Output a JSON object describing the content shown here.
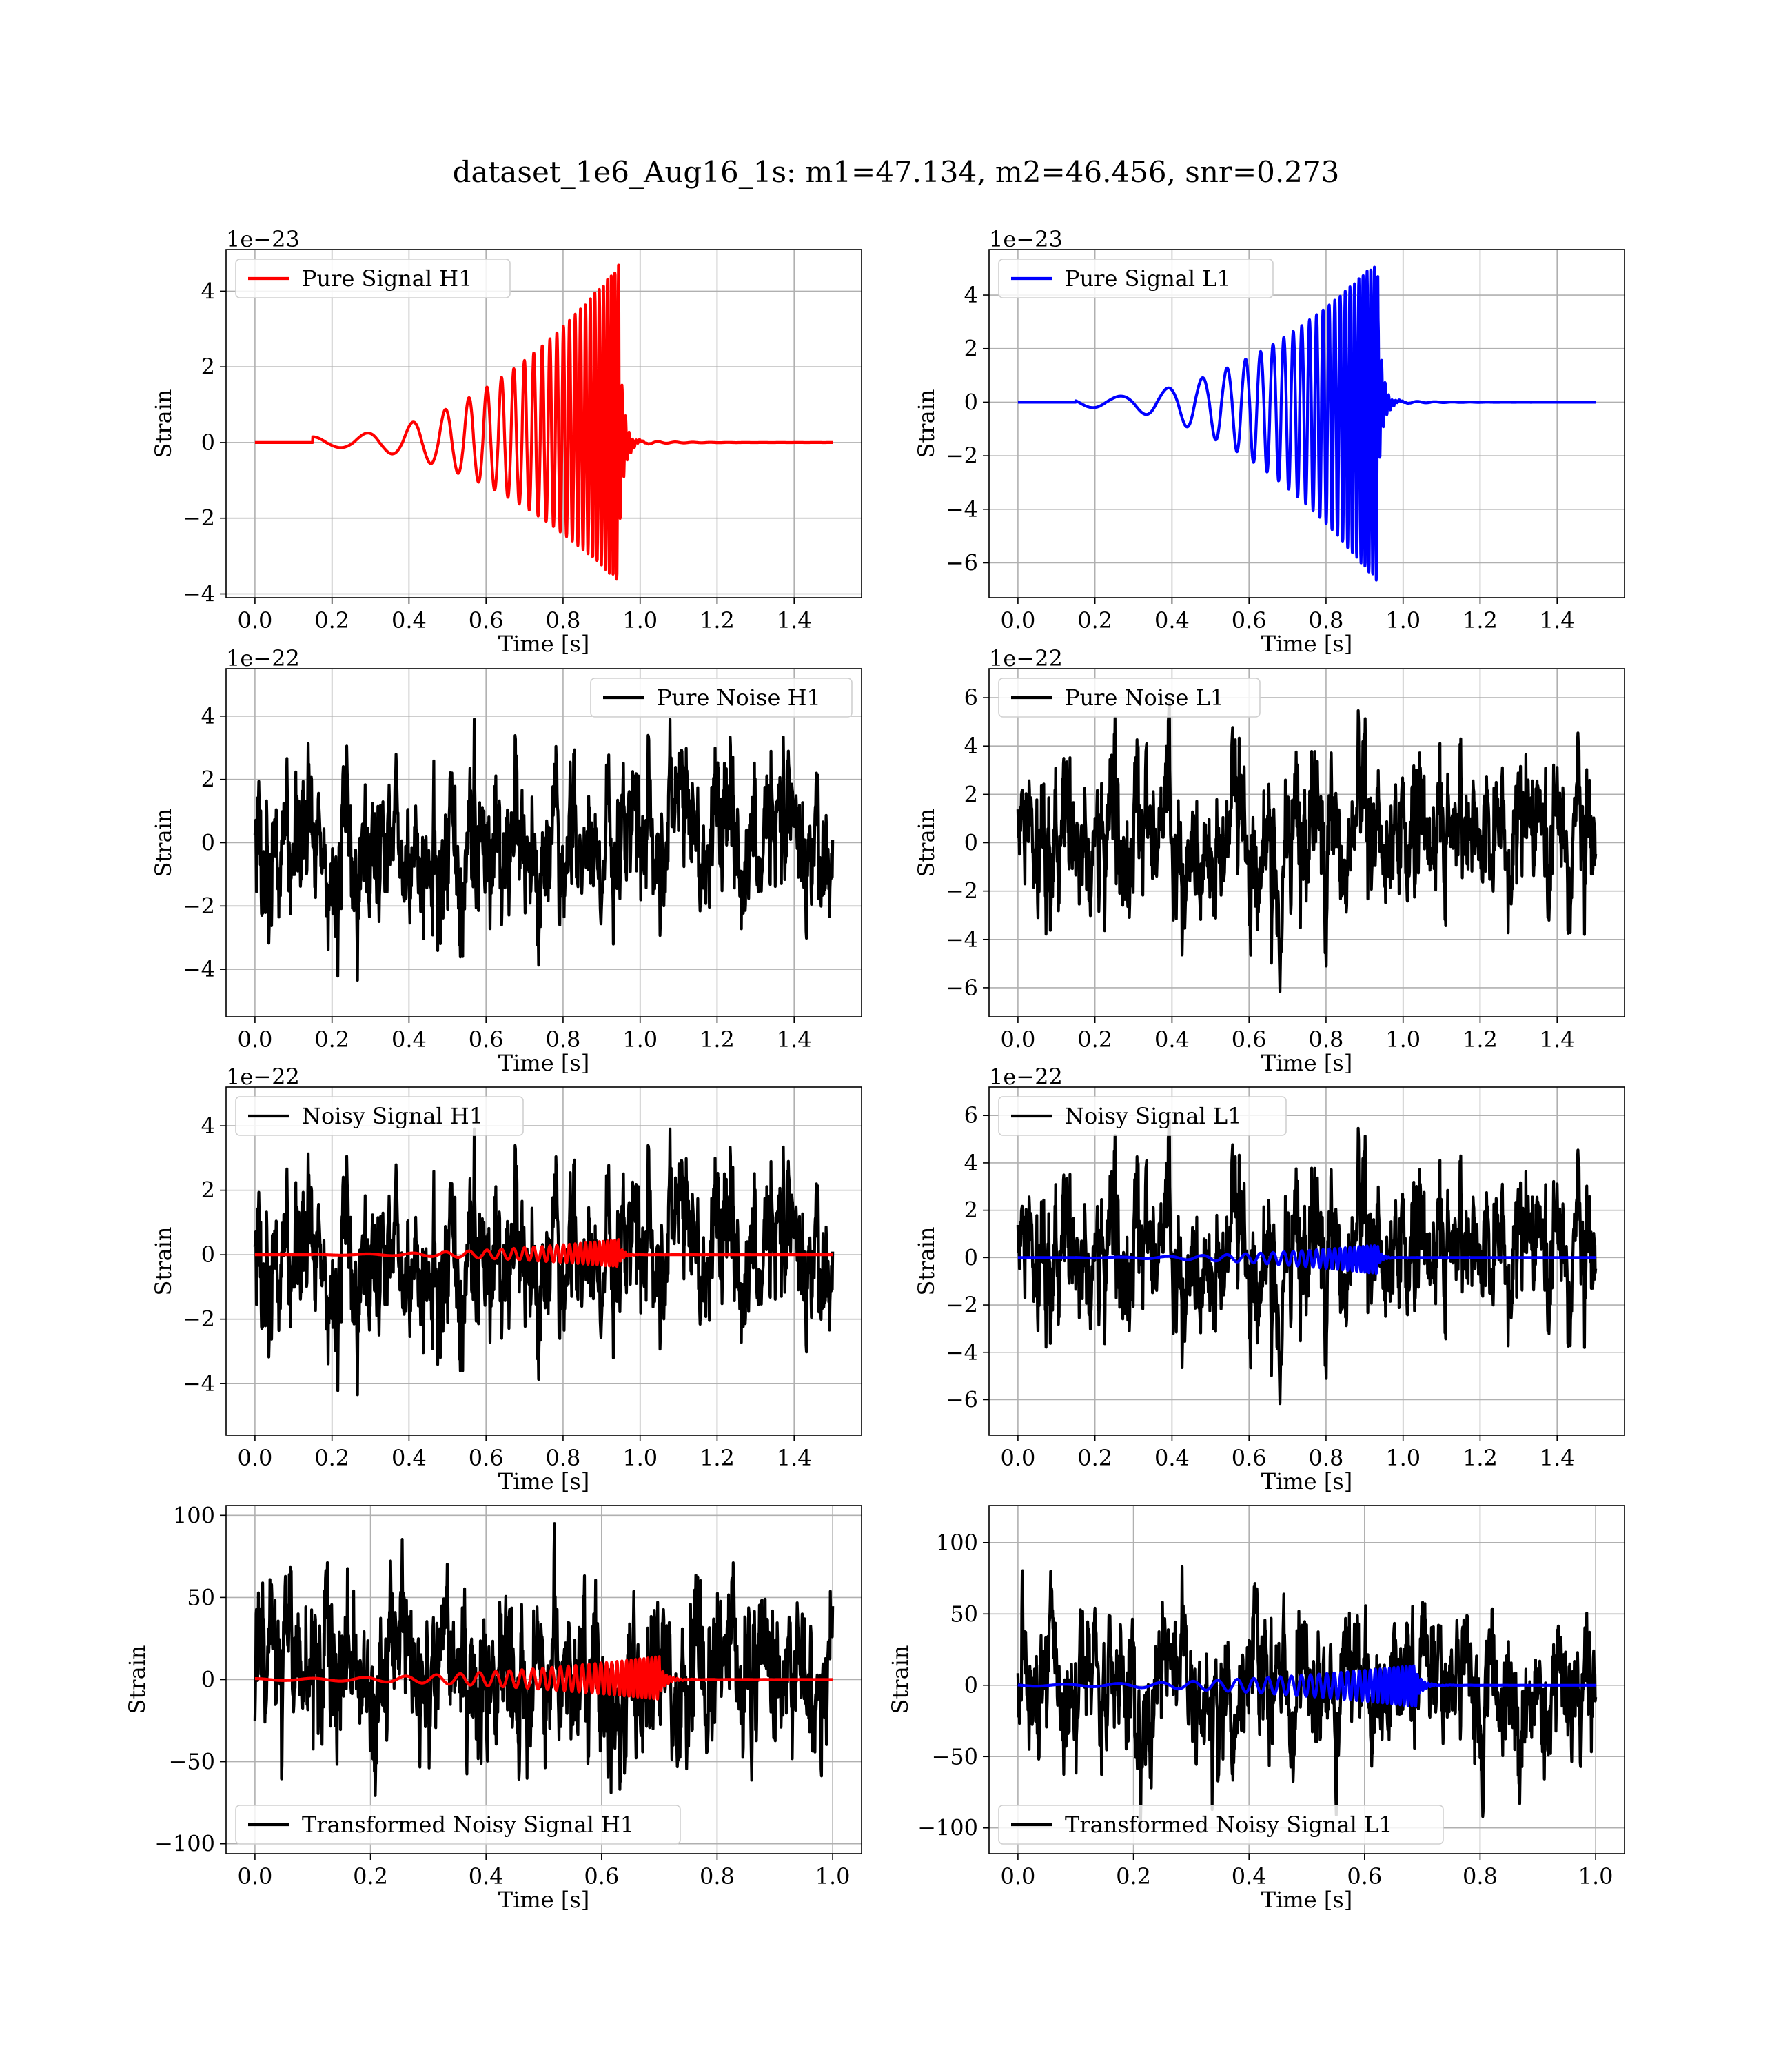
{
  "figure": {
    "title": "dataset_1e6_Aug16_1s: m1=47.134, m2=46.456, snr=0.273"
  },
  "chart_data": [
    {
      "type": "line",
      "id": "pure-signal-h1",
      "legend": "Pure Signal H1",
      "legend_loc": "upper-left",
      "xlabel": "Time [s]",
      "ylabel": "Strain",
      "offset_label": "1e−23",
      "xlim": [
        -0.075,
        1.575
      ],
      "ylim": [
        -4.1,
        5.1
      ],
      "xticks": [
        0.0,
        0.2,
        0.4,
        0.6,
        0.8,
        1.0,
        1.2,
        1.4
      ],
      "xtick_labels": [
        "0.0",
        "0.2",
        "0.4",
        "0.6",
        "0.8",
        "1.0",
        "1.2",
        "1.4"
      ],
      "yticks": [
        -4,
        -2,
        0,
        2,
        4
      ],
      "ytick_labels": [
        "−4",
        "−2",
        "0",
        "2",
        "4"
      ],
      "grid": true,
      "series": [
        {
          "name": "Pure Signal H1",
          "color": "#ff0000",
          "kind": "chirp",
          "t0": 0.0,
          "t1": 1.5,
          "merger": 0.945,
          "start": 0.15,
          "amp_peak": 4.7,
          "amp_min": -3.7,
          "amp_early": 0.15,
          "freq_early": 7,
          "freq_late": 110,
          "phase": 0
        }
      ]
    },
    {
      "type": "line",
      "id": "pure-signal-l1",
      "legend": "Pure Signal L1",
      "legend_loc": "upper-left",
      "xlabel": "Time [s]",
      "ylabel": "Strain",
      "offset_label": "1e−23",
      "xlim": [
        -0.075,
        1.575
      ],
      "ylim": [
        -7.3,
        5.7
      ],
      "xticks": [
        0.0,
        0.2,
        0.4,
        0.6,
        0.8,
        1.0,
        1.2,
        1.4
      ],
      "xtick_labels": [
        "0.0",
        "0.2",
        "0.4",
        "0.6",
        "0.8",
        "1.0",
        "1.2",
        "1.4"
      ],
      "yticks": [
        -6,
        -4,
        -2,
        0,
        2,
        4
      ],
      "ytick_labels": [
        "−6",
        "−4",
        "−2",
        "0",
        "2",
        "4"
      ],
      "grid": true,
      "series": [
        {
          "name": "Pure Signal L1",
          "color": "#0000ff",
          "kind": "chirp",
          "t0": 0.0,
          "t1": 1.5,
          "merger": 0.935,
          "start": 0.15,
          "amp_peak": 5.3,
          "amp_min": -6.8,
          "amp_early": 0.15,
          "freq_early": 7,
          "freq_late": 110,
          "phase": 1.2
        }
      ]
    },
    {
      "type": "line",
      "id": "pure-noise-h1",
      "legend": "Pure Noise H1",
      "legend_loc": "upper-right",
      "xlabel": "Time [s]",
      "ylabel": "Strain",
      "offset_label": "1e−22",
      "xlim": [
        -0.075,
        1.575
      ],
      "ylim": [
        -5.5,
        5.5
      ],
      "xticks": [
        0.0,
        0.2,
        0.4,
        0.6,
        0.8,
        1.0,
        1.2,
        1.4
      ],
      "xtick_labels": [
        "0.0",
        "0.2",
        "0.4",
        "0.6",
        "0.8",
        "1.0",
        "1.2",
        "1.4"
      ],
      "yticks": [
        -4,
        -2,
        0,
        2,
        4
      ],
      "ytick_labels": [
        "−4",
        "−2",
        "0",
        "2",
        "4"
      ],
      "grid": true,
      "series": [
        {
          "name": "Pure Noise H1",
          "color": "#000000",
          "kind": "noise",
          "t0": 0.0,
          "t1": 1.5,
          "sigma": 1.3,
          "max": 5.0,
          "min": -5.0,
          "seed": 11
        }
      ]
    },
    {
      "type": "line",
      "id": "pure-noise-l1",
      "legend": "Pure Noise L1",
      "legend_loc": "upper-left",
      "xlabel": "Time [s]",
      "ylabel": "Strain",
      "offset_label": "1e−22",
      "xlim": [
        -0.075,
        1.575
      ],
      "ylim": [
        -7.2,
        7.2
      ],
      "xticks": [
        0.0,
        0.2,
        0.4,
        0.6,
        0.8,
        1.0,
        1.2,
        1.4
      ],
      "xtick_labels": [
        "0.0",
        "0.2",
        "0.4",
        "0.6",
        "0.8",
        "1.0",
        "1.2",
        "1.4"
      ],
      "yticks": [
        -6,
        -4,
        -2,
        0,
        2,
        4,
        6
      ],
      "ytick_labels": [
        "−6",
        "−4",
        "−2",
        "0",
        "2",
        "4",
        "6"
      ],
      "grid": true,
      "series": [
        {
          "name": "Pure Noise L1",
          "color": "#000000",
          "kind": "noise",
          "t0": 0.0,
          "t1": 1.5,
          "sigma": 1.7,
          "max": 6.5,
          "min": -6.5,
          "seed": 29
        }
      ]
    },
    {
      "type": "line",
      "id": "noisy-signal-h1",
      "legend": "Noisy Signal H1",
      "legend_loc": "upper-left",
      "xlabel": "Time [s]",
      "ylabel": "Strain",
      "offset_label": "1e−22",
      "xlim": [
        -0.075,
        1.575
      ],
      "ylim": [
        -5.6,
        5.2
      ],
      "xticks": [
        0.0,
        0.2,
        0.4,
        0.6,
        0.8,
        1.0,
        1.2,
        1.4
      ],
      "xtick_labels": [
        "0.0",
        "0.2",
        "0.4",
        "0.6",
        "0.8",
        "1.0",
        "1.2",
        "1.4"
      ],
      "yticks": [
        -4,
        -2,
        0,
        2,
        4
      ],
      "ytick_labels": [
        "−4",
        "−2",
        "0",
        "2",
        "4"
      ],
      "grid": true,
      "series": [
        {
          "name": "Noisy Signal H1",
          "color": "#000000",
          "kind": "noise",
          "t0": 0.0,
          "t1": 1.5,
          "sigma": 1.3,
          "max": 4.8,
          "min": -5.1,
          "seed": 11
        },
        {
          "color": "#ff0000",
          "kind": "chirp",
          "t0": 0.0,
          "t1": 1.5,
          "merger": 0.945,
          "start": 0.15,
          "amp_peak": 0.47,
          "amp_min": -0.37,
          "amp_early": 0.015,
          "freq_early": 7,
          "freq_late": 110,
          "phase": 0
        }
      ]
    },
    {
      "type": "line",
      "id": "noisy-signal-l1",
      "legend": "Noisy Signal L1",
      "legend_loc": "upper-left",
      "xlabel": "Time [s]",
      "ylabel": "Strain",
      "offset_label": "1e−22",
      "xlim": [
        -0.075,
        1.575
      ],
      "ylim": [
        -7.5,
        7.2
      ],
      "xticks": [
        0.0,
        0.2,
        0.4,
        0.6,
        0.8,
        1.0,
        1.2,
        1.4
      ],
      "xtick_labels": [
        "0.0",
        "0.2",
        "0.4",
        "0.6",
        "0.8",
        "1.0",
        "1.2",
        "1.4"
      ],
      "yticks": [
        -6,
        -4,
        -2,
        0,
        2,
        4,
        6
      ],
      "ytick_labels": [
        "−6",
        "−4",
        "−2",
        "0",
        "2",
        "4",
        "6"
      ],
      "grid": true,
      "series": [
        {
          "name": "Noisy Signal L1",
          "color": "#000000",
          "kind": "noise",
          "t0": 0.0,
          "t1": 1.5,
          "sigma": 1.7,
          "max": 6.5,
          "min": -6.8,
          "seed": 29
        },
        {
          "color": "#0000ff",
          "kind": "chirp",
          "t0": 0.0,
          "t1": 1.5,
          "merger": 0.935,
          "start": 0.15,
          "amp_peak": 0.53,
          "amp_min": -0.68,
          "amp_early": 0.015,
          "freq_early": 7,
          "freq_late": 110,
          "phase": 1.2
        }
      ]
    },
    {
      "type": "line",
      "id": "transformed-noisy-signal-h1",
      "legend": "Transformed Noisy Signal H1",
      "legend_loc": "lower-left",
      "xlabel": "Time [s]",
      "ylabel": "Strain",
      "offset_label": "",
      "xlim": [
        -0.05,
        1.05
      ],
      "ylim": [
        -106,
        106
      ],
      "xticks": [
        0.0,
        0.2,
        0.4,
        0.6,
        0.8,
        1.0
      ],
      "xtick_labels": [
        "0.0",
        "0.2",
        "0.4",
        "0.6",
        "0.8",
        "1.0"
      ],
      "yticks": [
        -100,
        -50,
        0,
        50,
        100
      ],
      "ytick_labels": [
        "−100",
        "−50",
        "0",
        "50",
        "100"
      ],
      "grid": true,
      "series": [
        {
          "name": "Transformed Noisy Signal H1",
          "color": "#000000",
          "kind": "noise",
          "t0": 0.0,
          "t1": 1.0,
          "sigma": 27,
          "max": 95,
          "min": -100,
          "seed": 57
        },
        {
          "color": "#ff0000",
          "kind": "chirp",
          "t0": 0.0,
          "t1": 1.0,
          "merger": 0.7,
          "start": 0.0,
          "amp_peak": 14,
          "amp_min": -12,
          "amp_early": 0.6,
          "freq_early": 10,
          "freq_late": 160,
          "phase": 0
        }
      ]
    },
    {
      "type": "line",
      "id": "transformed-noisy-signal-l1",
      "legend": "Transformed Noisy Signal L1",
      "legend_loc": "lower-left",
      "xlabel": "Time [s]",
      "ylabel": "Strain",
      "offset_label": "",
      "xlim": [
        -0.05,
        1.05
      ],
      "ylim": [
        -118,
        126
      ],
      "xticks": [
        0.0,
        0.2,
        0.4,
        0.6,
        0.8,
        1.0
      ],
      "xtick_labels": [
        "0.0",
        "0.2",
        "0.4",
        "0.6",
        "0.8",
        "1.0"
      ],
      "yticks": [
        -100,
        -50,
        0,
        50,
        100
      ],
      "ytick_labels": [
        "−100",
        "−50",
        "0",
        "50",
        "100"
      ],
      "grid": true,
      "series": [
        {
          "name": "Transformed Noisy Signal L1",
          "color": "#000000",
          "kind": "noise",
          "t0": 0.0,
          "t1": 1.0,
          "sigma": 27,
          "max": 115,
          "min": -103,
          "seed": 83
        },
        {
          "color": "#0000ff",
          "kind": "chirp",
          "t0": 0.0,
          "t1": 1.0,
          "merger": 0.69,
          "start": 0.0,
          "amp_peak": 14,
          "amp_min": -15,
          "amp_early": 0.6,
          "freq_early": 10,
          "freq_late": 160,
          "phase": 1.2
        }
      ]
    }
  ]
}
